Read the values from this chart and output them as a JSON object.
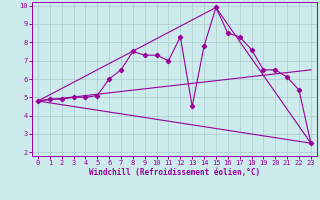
{
  "xlabel": "Windchill (Refroidissement éolien,°C)",
  "ylabel": "",
  "background_color": "#cdeaed",
  "line_color": "#990099",
  "grid_color": "#aacccc",
  "xlim_min": -0.5,
  "xlim_max": 23.5,
  "ylim_min": 1.8,
  "ylim_max": 10.2,
  "xticks": [
    0,
    1,
    2,
    3,
    4,
    5,
    6,
    7,
    8,
    9,
    10,
    11,
    12,
    13,
    14,
    15,
    16,
    17,
    18,
    19,
    20,
    21,
    22,
    23
  ],
  "yticks": [
    2,
    3,
    4,
    5,
    6,
    7,
    8,
    9,
    10
  ],
  "line1_x": [
    0,
    1,
    2,
    3,
    4,
    5,
    6,
    7,
    8,
    9,
    10,
    11,
    12,
    13,
    14,
    15,
    16,
    17,
    18,
    19,
    20,
    21,
    22,
    23
  ],
  "line1_y": [
    4.8,
    4.9,
    4.9,
    5.0,
    5.0,
    5.1,
    6.0,
    6.5,
    7.5,
    7.3,
    7.3,
    7.0,
    8.3,
    4.5,
    7.8,
    9.9,
    8.5,
    8.3,
    7.6,
    6.5,
    6.5,
    6.1,
    5.4,
    2.5
  ],
  "line2_x": [
    0,
    23
  ],
  "line2_y": [
    4.8,
    6.5
  ],
  "line3_x": [
    0,
    23
  ],
  "line3_y": [
    4.8,
    2.5
  ],
  "line4_x": [
    0,
    15,
    23
  ],
  "line4_y": [
    4.8,
    9.9,
    2.5
  ],
  "marker": "D",
  "markersize": 2.2,
  "linewidth": 0.8,
  "tick_fontsize": 5.0,
  "xlabel_fontsize": 5.5
}
